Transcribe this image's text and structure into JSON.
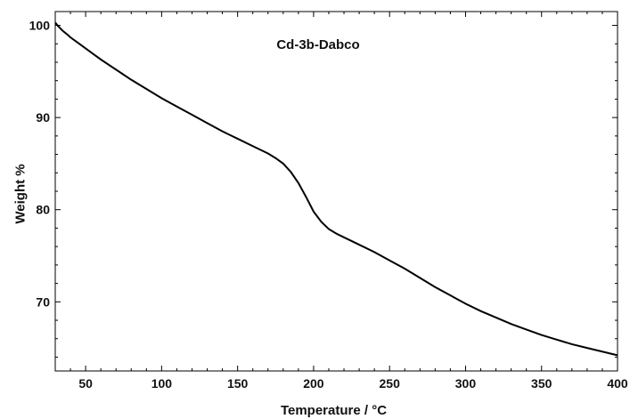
{
  "chart_data": {
    "type": "line",
    "title": "Cd-3b-Dabco",
    "xlabel": "Temperature / °C",
    "ylabel": "Weight %",
    "xlim": [
      30,
      400
    ],
    "ylim": [
      62.5,
      101.5
    ],
    "xticks": [
      50,
      100,
      150,
      200,
      250,
      300,
      350,
      400
    ],
    "yticks": [
      70,
      80,
      90,
      100
    ],
    "x_minor_step": 10,
    "y_minor_step": 2,
    "grid": false,
    "line_color": "#000000",
    "series": [
      {
        "x": [
          30,
          32,
          35,
          38,
          40,
          45,
          50,
          55,
          60,
          70,
          80,
          90,
          100,
          110,
          120,
          130,
          140,
          150,
          160,
          165,
          170,
          175,
          180,
          185,
          190,
          195,
          200,
          205,
          210,
          215,
          220,
          225,
          230,
          240,
          250,
          260,
          270,
          280,
          290,
          300,
          310,
          320,
          330,
          340,
          350,
          360,
          370,
          380,
          390,
          400
        ],
        "y": [
          100.3,
          99.9,
          99.4,
          99.0,
          98.7,
          98.1,
          97.5,
          96.9,
          96.3,
          95.2,
          94.1,
          93.1,
          92.1,
          91.2,
          90.3,
          89.4,
          88.5,
          87.7,
          86.9,
          86.5,
          86.1,
          85.6,
          85.0,
          84.1,
          82.9,
          81.4,
          79.8,
          78.7,
          77.9,
          77.4,
          77.0,
          76.6,
          76.2,
          75.4,
          74.5,
          73.6,
          72.6,
          71.6,
          70.7,
          69.8,
          69.0,
          68.3,
          67.6,
          67.0,
          66.4,
          65.9,
          65.4,
          65.0,
          64.6,
          64.2
        ]
      }
    ]
  }
}
